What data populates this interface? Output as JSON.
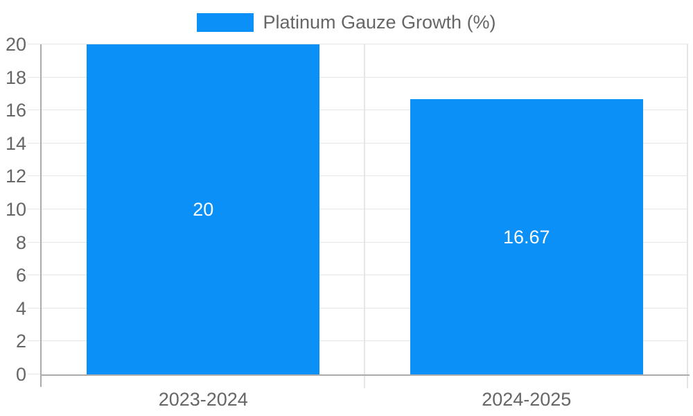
{
  "chart_data": {
    "type": "bar",
    "title": "",
    "categories": [
      "2023-2024",
      "2024-2025"
    ],
    "series": [
      {
        "name": "Platinum Gauze Growth (%)",
        "values": [
          20,
          16.67
        ],
        "data_labels": [
          "20",
          "16.67"
        ],
        "color": "#0a90f6"
      }
    ],
    "ylim": [
      0,
      20
    ],
    "yticks": [
      0,
      2,
      4,
      6,
      8,
      10,
      12,
      14,
      16,
      18,
      20
    ],
    "grid": true,
    "legend_position": "top",
    "xlabel": "",
    "ylabel": "",
    "colors": {
      "axis_line": "#ababab",
      "gridline": "#e6e6e6",
      "tick_text": "#666666",
      "data_label_text": "#ffffff",
      "background": "#ffffff"
    }
  }
}
